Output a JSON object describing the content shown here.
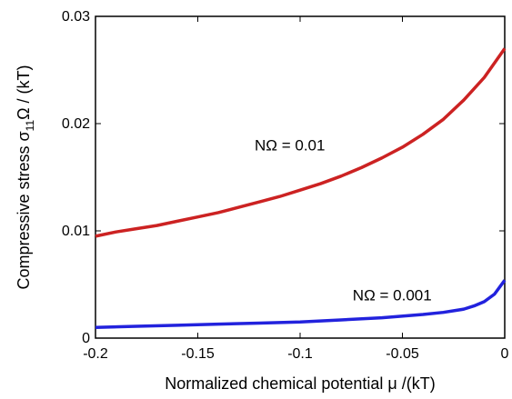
{
  "chart_data": {
    "type": "line",
    "title": "",
    "xlabel": "Normalized chemical potential μ /(kT)",
    "ylabel_main": "Compressive stress  σ",
    "ylabel_sub": "11",
    "ylabel_tail": "Ω / (kT)",
    "xlim": [
      -0.2,
      0
    ],
    "ylim": [
      0,
      0.03
    ],
    "xticks": [
      -0.2,
      -0.15,
      -0.1,
      -0.05,
      0
    ],
    "xtick_labels": [
      "-0.2",
      "-0.15",
      "-0.1",
      "-0.05",
      "0"
    ],
    "yticks": [
      0,
      0.01,
      0.02,
      0.03
    ],
    "ytick_labels": [
      "0",
      "0.01",
      "0.02",
      "0.03"
    ],
    "grid": false,
    "series": [
      {
        "name": "NΩ = 0.01",
        "color": "#cc2222",
        "x": [
          -0.2,
          -0.19,
          -0.18,
          -0.17,
          -0.16,
          -0.15,
          -0.14,
          -0.13,
          -0.12,
          -0.11,
          -0.1,
          -0.09,
          -0.08,
          -0.07,
          -0.06,
          -0.05,
          -0.04,
          -0.03,
          -0.02,
          -0.01,
          0
        ],
        "y": [
          0.0095,
          0.0099,
          0.0102,
          0.0105,
          0.0109,
          0.0113,
          0.0117,
          0.0122,
          0.0127,
          0.0132,
          0.0138,
          0.0144,
          0.0151,
          0.0159,
          0.0168,
          0.0178,
          0.019,
          0.0204,
          0.0222,
          0.0243,
          0.027
        ]
      },
      {
        "name": "NΩ = 0.001",
        "color": "#2222dd",
        "x": [
          -0.2,
          -0.18,
          -0.16,
          -0.14,
          -0.12,
          -0.1,
          -0.08,
          -0.06,
          -0.04,
          -0.03,
          -0.02,
          -0.015,
          -0.01,
          -0.005,
          0
        ],
        "y": [
          0.001,
          0.0011,
          0.0012,
          0.0013,
          0.0014,
          0.0015,
          0.0017,
          0.0019,
          0.0022,
          0.0024,
          0.0027,
          0.003,
          0.0034,
          0.0041,
          0.0054
        ]
      }
    ],
    "annotations": [
      {
        "text": "NΩ = 0.01",
        "x": -0.105,
        "y": 0.0175
      },
      {
        "text": "NΩ = 0.001",
        "x": -0.055,
        "y": 0.0035
      }
    ]
  }
}
